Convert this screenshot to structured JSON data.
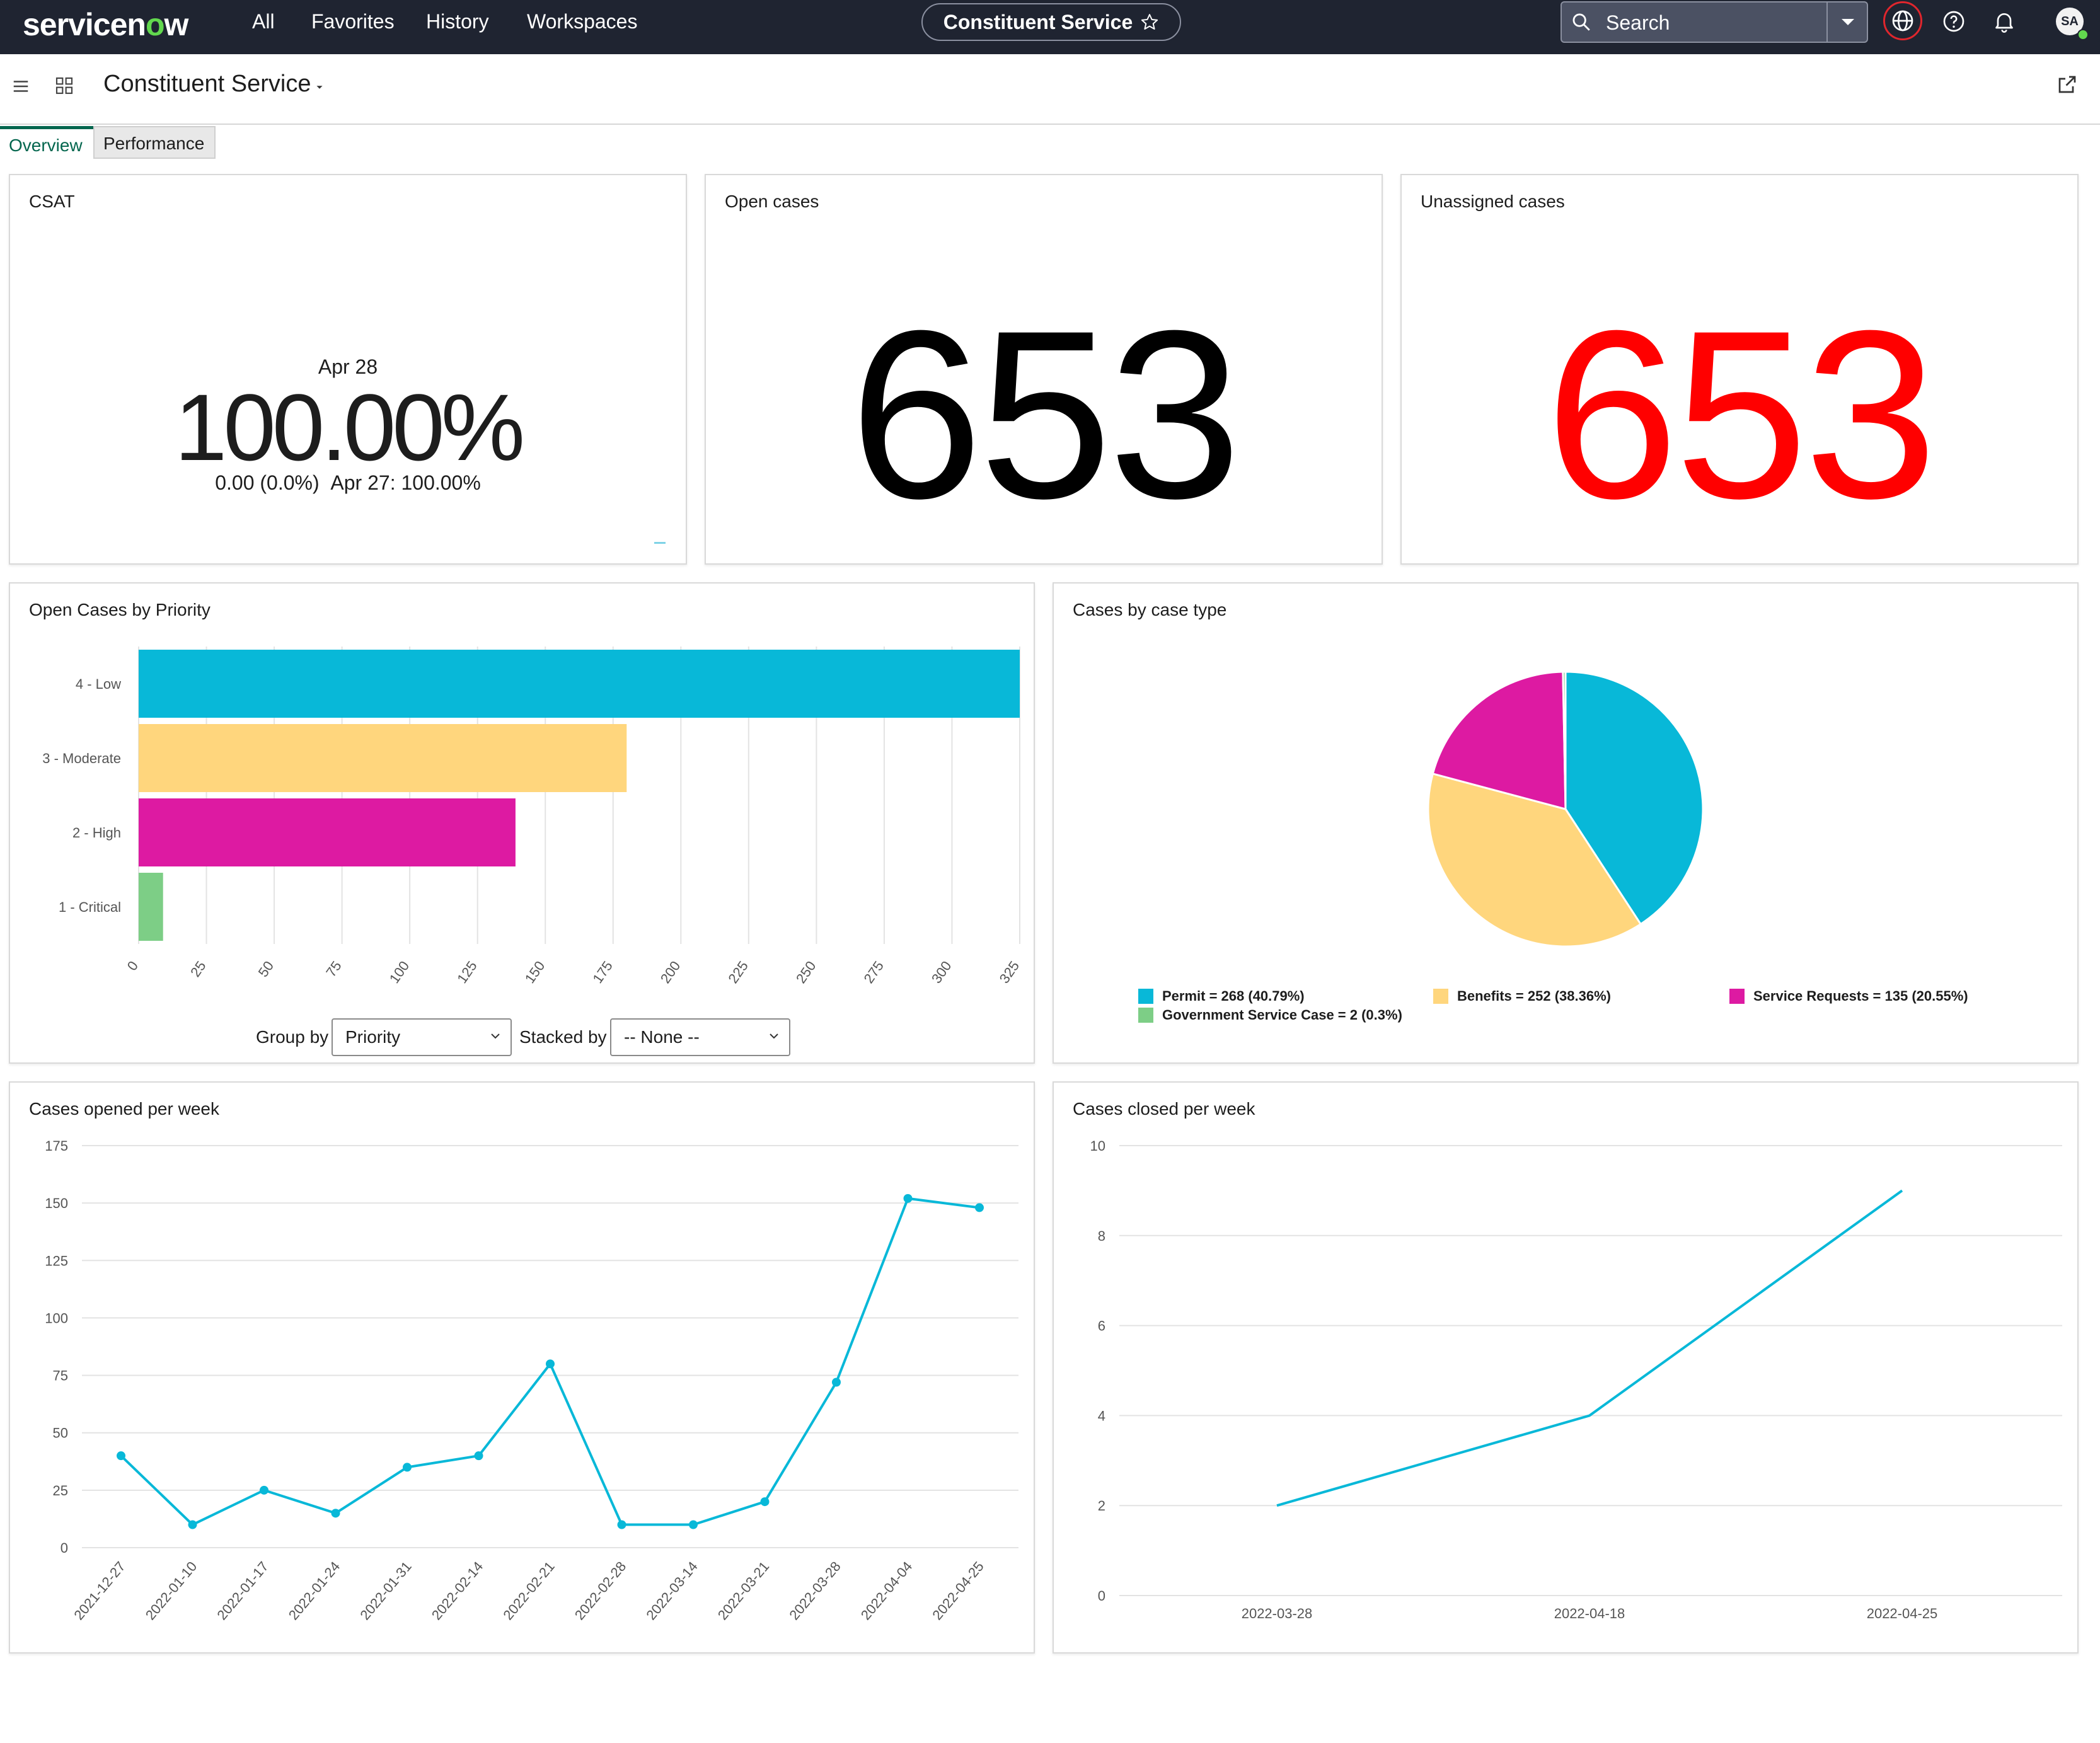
{
  "nav": {
    "logo_text_a": "servicen",
    "logo_text_o": "o",
    "logo_text_b": "w",
    "all": "All",
    "favorites": "Favorites",
    "history": "History",
    "workspaces": "Workspaces",
    "app_name": "Constituent Service",
    "search_placeholder": "Search",
    "avatar_initials": "SA"
  },
  "subbar": {
    "title": "Constituent Service"
  },
  "tabs": [
    {
      "label": "Overview",
      "active": true
    },
    {
      "label": "Performance",
      "active": false
    }
  ],
  "csat": {
    "title": "CSAT",
    "date": "Apr 28",
    "value": "100.00%",
    "change": "0.00 (0.0%)",
    "previous": "Apr 27: 100.00%"
  },
  "open_cases": {
    "title": "Open cases",
    "value": "653",
    "color": "#000000"
  },
  "unassigned_cases": {
    "title": "Unassigned cases",
    "value": "653",
    "color": "#ff0000"
  },
  "priority_widget": {
    "title": "Open Cases by Priority",
    "group_by_label": "Group by",
    "group_by_value": "Priority",
    "stacked_by_label": "Stacked by",
    "stacked_by_value": "-- None --"
  },
  "case_type_widget": {
    "title": "Cases by case type"
  },
  "opened_widget": {
    "title": "Cases opened per week"
  },
  "closed_widget": {
    "title": "Cases closed per week"
  },
  "chart_data": [
    {
      "type": "bar",
      "orientation": "horizontal",
      "title": "Open Cases by Priority",
      "categories": [
        "4 - Low",
        "3 - Moderate",
        "2 - High",
        "1 - Critical"
      ],
      "values": [
        325,
        180,
        139,
        9
      ],
      "colors": [
        "#08b8d8",
        "#ffd67d",
        "#dd1aa2",
        "#7dce86"
      ],
      "x_ticks": [
        0,
        25,
        50,
        75,
        100,
        125,
        150,
        175,
        200,
        225,
        250,
        275,
        300,
        325
      ],
      "xlim": [
        0,
        325
      ],
      "grid": true
    },
    {
      "type": "pie",
      "title": "Cases by case type",
      "slices": [
        {
          "label": "Permit",
          "value": 268,
          "percent": 40.79,
          "color": "#08b8d8",
          "legend": "Permit = 268 (40.79%)"
        },
        {
          "label": "Benefits",
          "value": 252,
          "percent": 38.36,
          "color": "#ffd67d",
          "legend": "Benefits = 252 (38.36%)"
        },
        {
          "label": "Service Requests",
          "value": 135,
          "percent": 20.55,
          "color": "#dd1aa2",
          "legend": "Service Requests = 135 (20.55%)"
        },
        {
          "label": "Government Service Case",
          "value": 2,
          "percent": 0.3,
          "color": "#7dce86",
          "legend": "Government Service Case = 2 (0.3%)"
        }
      ],
      "legend_position": "bottom"
    },
    {
      "type": "line",
      "title": "Cases opened per week",
      "x": [
        "2021-12-27",
        "2022-01-10",
        "2022-01-17",
        "2022-01-24",
        "2022-01-31",
        "2022-02-14",
        "2022-02-21",
        "2022-02-28",
        "2022-03-14",
        "2022-03-21",
        "2022-03-28",
        "2022-04-04",
        "2022-04-25"
      ],
      "values": [
        40,
        10,
        25,
        15,
        35,
        40,
        80,
        10,
        10,
        20,
        72,
        152,
        148
      ],
      "y_ticks": [
        0,
        25,
        50,
        75,
        100,
        125,
        150,
        175
      ],
      "ylim": [
        0,
        175
      ],
      "color": "#08b8d8",
      "markers": true,
      "grid": true
    },
    {
      "type": "line",
      "title": "Cases closed per week",
      "x": [
        "2022-03-28",
        "2022-04-18",
        "2022-04-25"
      ],
      "values": [
        2,
        4,
        9
      ],
      "y_ticks": [
        0,
        2,
        4,
        6,
        8,
        10
      ],
      "ylim": [
        0,
        10
      ],
      "color": "#08b8d8",
      "markers": false,
      "grid": true
    }
  ]
}
